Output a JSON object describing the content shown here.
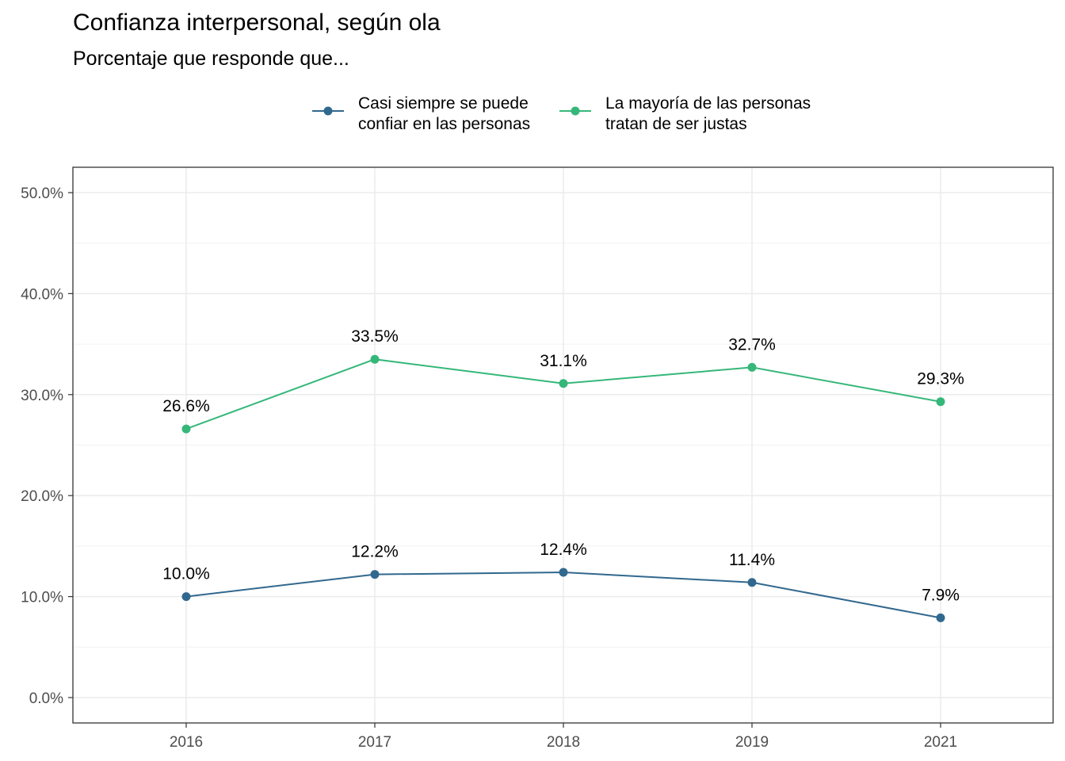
{
  "chart_data": {
    "type": "line",
    "title": "Confianza interpersonal, según ola",
    "subtitle": "Porcentaje que responde que...",
    "xlabel": "",
    "ylabel": "",
    "categories": [
      "2016",
      "2017",
      "2018",
      "2019",
      "2021"
    ],
    "ylim": [
      0,
      50
    ],
    "yticks": [
      0,
      10,
      20,
      30,
      40,
      50
    ],
    "ytick_labels": [
      "0.0%",
      "10.0%",
      "20.0%",
      "30.0%",
      "40.0%",
      "50.0%"
    ],
    "grid": true,
    "legend_position": "top",
    "series": [
      {
        "name_lines": [
          "Casi siempre se puede",
          "confiar en las personas"
        ],
        "color": "#31688e",
        "values": [
          10.0,
          12.2,
          12.4,
          11.4,
          7.9
        ],
        "labels": [
          "10.0%",
          "12.2%",
          "12.4%",
          "11.4%",
          "7.9%"
        ]
      },
      {
        "name_lines": [
          "La mayoría de las personas",
          "tratan de ser justas"
        ],
        "color": "#35b779",
        "values": [
          26.6,
          33.5,
          31.1,
          32.7,
          29.3
        ],
        "labels": [
          "26.6%",
          "33.5%",
          "31.1%",
          "32.7%",
          "29.3%"
        ]
      }
    ]
  }
}
